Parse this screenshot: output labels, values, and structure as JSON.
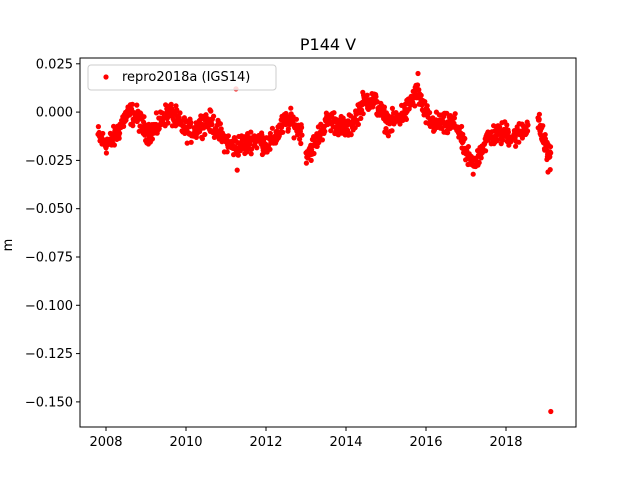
{
  "chart_data": {
    "type": "scatter",
    "title": "P144 V",
    "xlabel": "",
    "ylabel": "m",
    "xlim": [
      2007.35,
      2019.75
    ],
    "ylim": [
      -0.163,
      0.028
    ],
    "xticks": [
      2008,
      2010,
      2012,
      2014,
      2016,
      2018
    ],
    "yticks": [
      0.025,
      0.0,
      -0.025,
      -0.05,
      -0.075,
      -0.1,
      -0.125,
      -0.15
    ],
    "ytick_labels": [
      "0.025",
      "0.000",
      "−0.025",
      "−0.050",
      "−0.075",
      "−0.100",
      "−0.125",
      "−0.150"
    ],
    "grid": false,
    "legend_position": "top-left",
    "color": "#ff0000",
    "series": [
      {
        "name": "repro2018a (IGS14)",
        "segments": [
          {
            "start": 2007.8,
            "end": 2012.9,
            "step": 0.01
          },
          {
            "start": 2013.0,
            "end": 2018.55,
            "step": 0.01
          },
          {
            "start": 2018.8,
            "end": 2019.12,
            "step": 0.006
          }
        ],
        "trend_knots": [
          [
            2007.8,
            -0.012
          ],
          [
            2008.3,
            -0.01
          ],
          [
            2008.8,
            -0.003
          ],
          [
            2009.3,
            -0.007
          ],
          [
            2010.0,
            -0.004
          ],
          [
            2010.5,
            -0.01
          ],
          [
            2011.0,
            -0.01
          ],
          [
            2011.5,
            -0.022
          ],
          [
            2011.9,
            -0.012
          ],
          [
            2012.5,
            -0.01
          ],
          [
            2012.9,
            -0.008
          ],
          [
            2013.0,
            -0.016
          ],
          [
            2013.4,
            -0.012
          ],
          [
            2013.9,
            -0.005
          ],
          [
            2014.3,
            0.0
          ],
          [
            2014.8,
            0.003
          ],
          [
            2015.2,
            -0.002
          ],
          [
            2015.5,
            -0.005
          ],
          [
            2015.8,
            0.01
          ],
          [
            2016.2,
            -0.003
          ],
          [
            2016.5,
            -0.012
          ],
          [
            2016.8,
            -0.008
          ],
          [
            2017.2,
            -0.025
          ],
          [
            2017.6,
            -0.018
          ],
          [
            2018.0,
            -0.005
          ],
          [
            2018.3,
            -0.012
          ],
          [
            2018.55,
            -0.012
          ],
          [
            2018.8,
            -0.004
          ],
          [
            2019.1,
            -0.018
          ]
        ],
        "seasonal_amplitude": 0.005,
        "noise_amplitude": 0.004,
        "outliers": [
          {
            "x": 2011.25,
            "y": 0.012
          },
          {
            "x": 2019.12,
            "y": -0.155
          },
          {
            "x": 2019.05,
            "y": -0.031
          },
          {
            "x": 2011.28,
            "y": -0.03
          },
          {
            "x": 2015.8,
            "y": 0.02
          }
        ]
      }
    ]
  }
}
